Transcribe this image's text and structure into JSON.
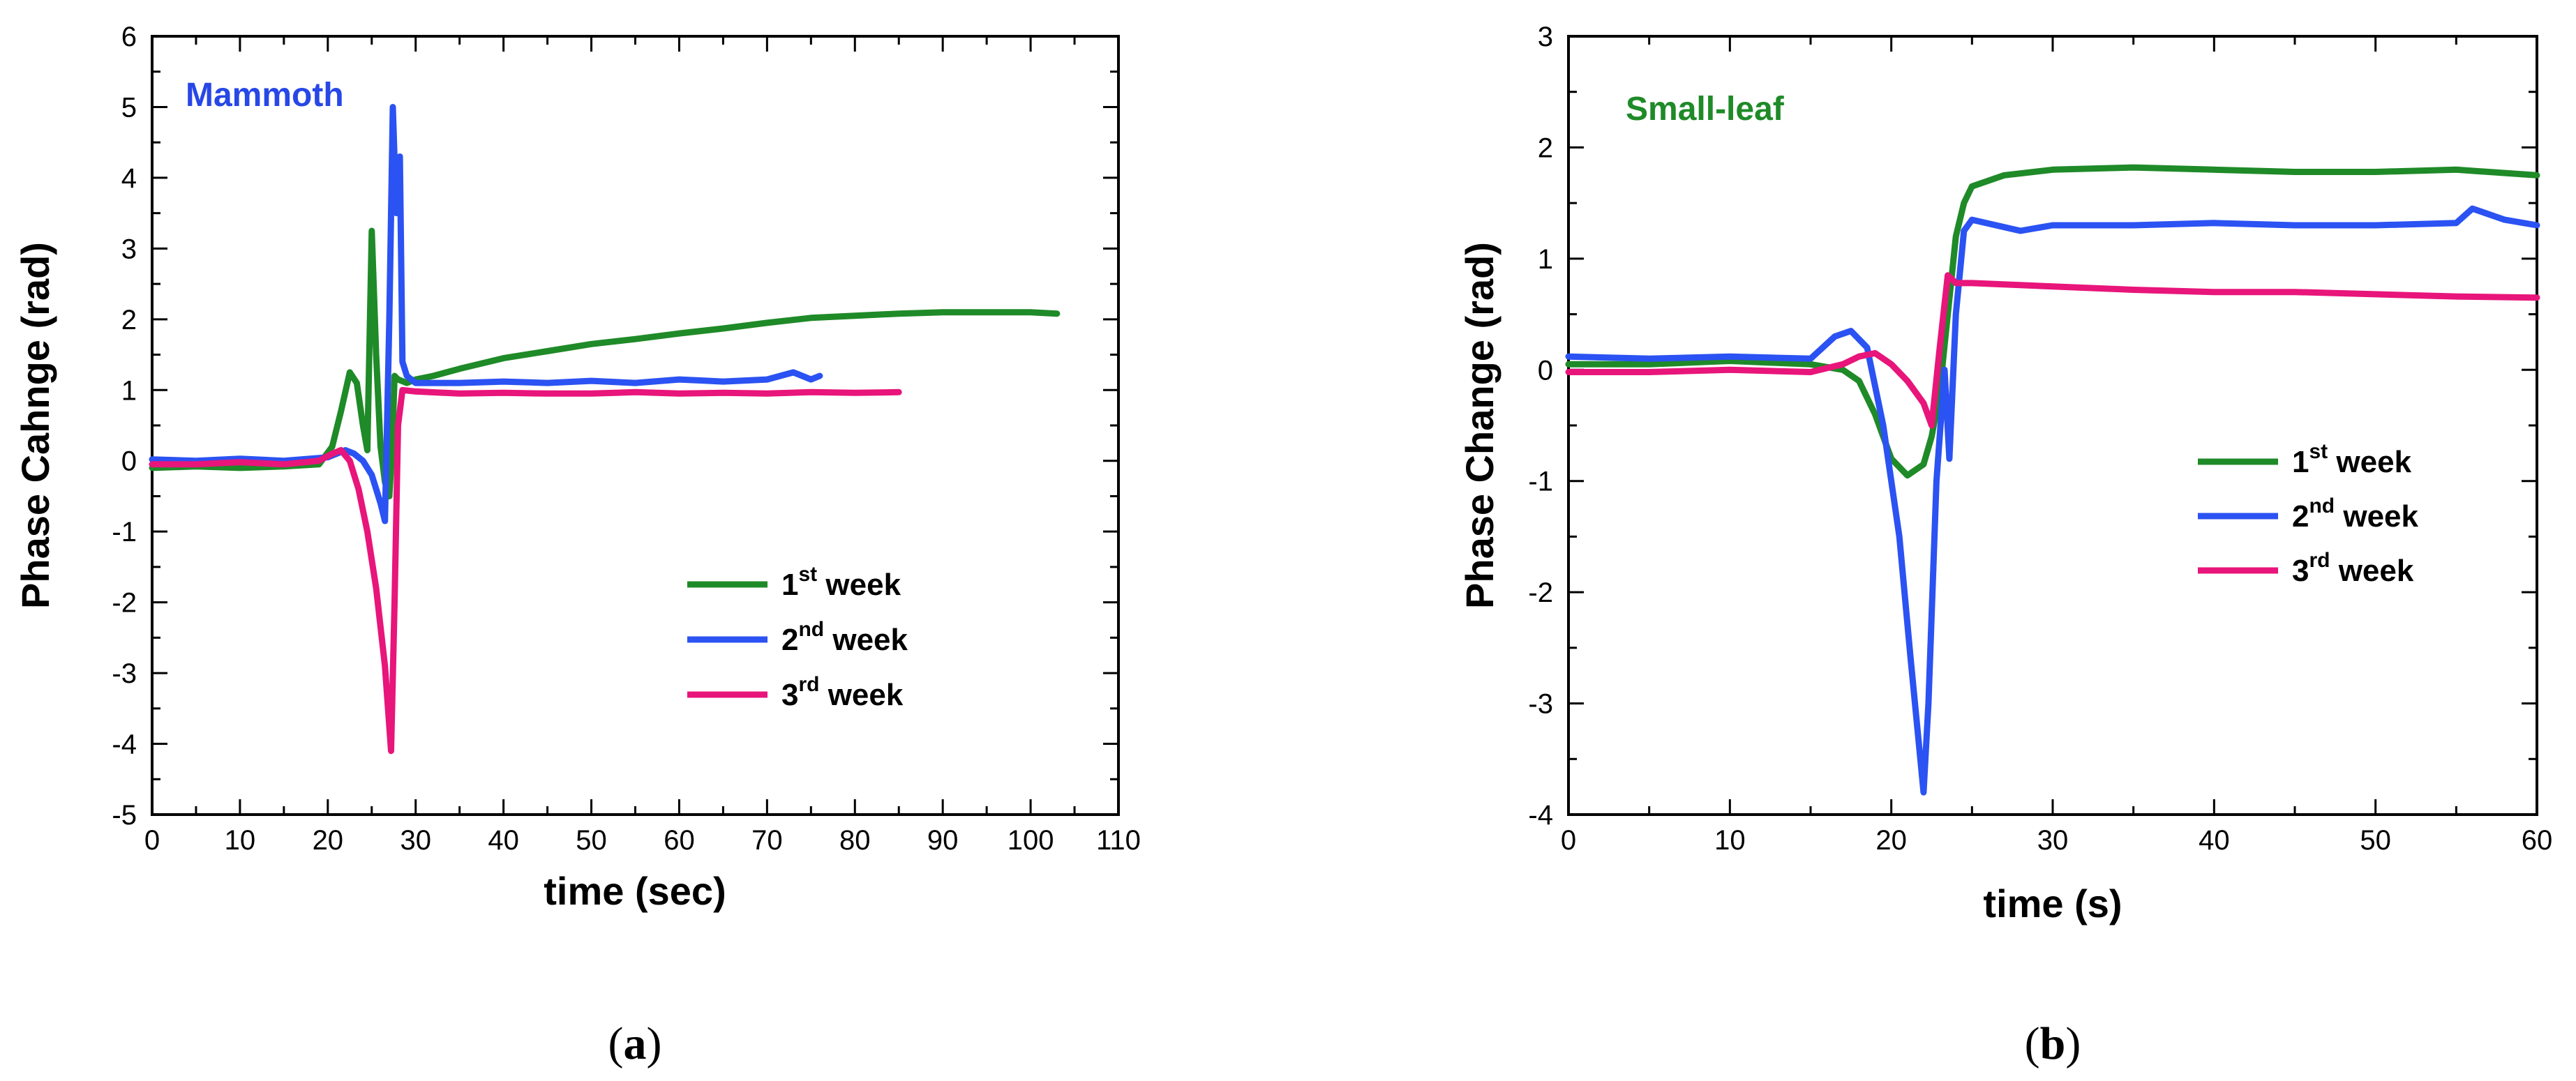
{
  "chart_data": [
    {
      "type": "line",
      "panel_label": "a",
      "title": "Mammoth",
      "title_color": "#2747e6",
      "xlabel": "time (sec)",
      "ylabel": "Phase Cahnge (rad)",
      "xlim": [
        0,
        110
      ],
      "ylim": [
        -5,
        6
      ],
      "xticks": [
        0,
        10,
        20,
        30,
        40,
        50,
        60,
        70,
        80,
        90,
        100,
        110
      ],
      "yticks": [
        -5,
        -4,
        -3,
        -2,
        -1,
        0,
        1,
        2,
        3,
        4,
        5,
        6
      ],
      "grid": false,
      "legend_position": "lower-right",
      "series": [
        {
          "name": "1st week",
          "base": "1",
          "sup": "st",
          "suffix": "week",
          "color": "#1f8a28",
          "x": [
            0,
            5,
            10,
            15,
            19,
            20.5,
            21.5,
            22.5,
            23.3,
            24,
            24.5,
            25,
            25.5,
            26,
            26.5,
            27,
            27.3,
            27.6,
            28,
            29,
            30,
            32,
            35,
            40,
            45,
            50,
            55,
            60,
            65,
            70,
            75,
            80,
            85,
            90,
            95,
            100,
            103
          ],
          "y": [
            -0.1,
            -0.08,
            -0.1,
            -0.08,
            -0.05,
            0.2,
            0.7,
            1.25,
            1.1,
            0.5,
            0.15,
            3.25,
            1.5,
            0.2,
            -0.3,
            -0.5,
            0.1,
            1.2,
            1.15,
            1.1,
            1.15,
            1.2,
            1.3,
            1.45,
            1.55,
            1.65,
            1.72,
            1.8,
            1.87,
            1.95,
            2.02,
            2.05,
            2.08,
            2.1,
            2.1,
            2.1,
            2.08
          ]
        },
        {
          "name": "2nd week",
          "base": "2",
          "sup": "nd",
          "suffix": "week",
          "color": "#2b52f2",
          "x": [
            0,
            5,
            10,
            15,
            20,
            22,
            23,
            24,
            25,
            26,
            26.5,
            27,
            27.4,
            27.8,
            28.2,
            28.5,
            29,
            30,
            35,
            40,
            45,
            50,
            55,
            60,
            65,
            70,
            73,
            75,
            76
          ],
          "y": [
            0.02,
            0.0,
            0.03,
            0.0,
            0.05,
            0.15,
            0.1,
            0.0,
            -0.2,
            -0.6,
            -0.85,
            2.0,
            5.0,
            3.5,
            4.3,
            1.4,
            1.2,
            1.1,
            1.1,
            1.12,
            1.1,
            1.13,
            1.1,
            1.15,
            1.12,
            1.15,
            1.25,
            1.15,
            1.2
          ]
        },
        {
          "name": "3rd week",
          "base": "3",
          "sup": "rd",
          "suffix": "week",
          "color": "#e8157a",
          "x": [
            0,
            5,
            10,
            15,
            19,
            20.5,
            21.5,
            22.5,
            23.5,
            24.5,
            25.5,
            26.5,
            27.2,
            27.6,
            28,
            28.5,
            30,
            35,
            40,
            45,
            50,
            55,
            60,
            65,
            70,
            75,
            80,
            85
          ],
          "y": [
            -0.05,
            -0.05,
            -0.02,
            -0.05,
            0.0,
            0.1,
            0.15,
            0.0,
            -0.4,
            -1.0,
            -1.8,
            -2.9,
            -4.1,
            -2.0,
            0.5,
            1.0,
            0.98,
            0.95,
            0.96,
            0.95,
            0.95,
            0.97,
            0.95,
            0.96,
            0.95,
            0.97,
            0.96,
            0.97
          ]
        }
      ]
    },
    {
      "type": "line",
      "panel_label": "b",
      "title": "Small-leaf",
      "title_color": "#1f8a28",
      "xlabel": "time (s)",
      "ylabel": "Phase Change (rad)",
      "xlim": [
        0,
        60
      ],
      "ylim": [
        -4,
        3
      ],
      "xticks": [
        0,
        10,
        20,
        30,
        40,
        50,
        60
      ],
      "yticks": [
        -4,
        -3,
        -2,
        -1,
        0,
        1,
        2,
        3
      ],
      "grid": false,
      "legend_position": "center-right",
      "series": [
        {
          "name": "1st week",
          "base": "1",
          "sup": "st",
          "suffix": "week",
          "color": "#1f8a28",
          "x": [
            0,
            5,
            10,
            15,
            17,
            18,
            19,
            20,
            21,
            22,
            22.5,
            23,
            23.5,
            24,
            24.5,
            25,
            27,
            30,
            35,
            40,
            45,
            50,
            55,
            60
          ],
          "y": [
            0.05,
            0.05,
            0.08,
            0.05,
            0.0,
            -0.1,
            -0.4,
            -0.8,
            -0.95,
            -0.85,
            -0.6,
            -0.2,
            0.5,
            1.2,
            1.5,
            1.65,
            1.75,
            1.8,
            1.82,
            1.8,
            1.78,
            1.78,
            1.8,
            1.75
          ]
        },
        {
          "name": "2nd week",
          "base": "2",
          "sup": "nd",
          "suffix": "week",
          "color": "#2b52f2",
          "x": [
            0,
            5,
            10,
            15,
            16.5,
            17.5,
            18.5,
            19.5,
            20.5,
            21.2,
            21.8,
            22,
            22.3,
            22.8,
            23.3,
            23.6,
            24,
            24.5,
            25,
            28,
            30,
            35,
            40,
            45,
            50,
            55,
            56,
            58,
            60
          ],
          "y": [
            0.12,
            0.1,
            0.12,
            0.1,
            0.3,
            0.35,
            0.2,
            -0.5,
            -1.5,
            -2.6,
            -3.5,
            -3.8,
            -3.0,
            -1.0,
            0.0,
            -0.8,
            0.5,
            1.25,
            1.35,
            1.25,
            1.3,
            1.3,
            1.32,
            1.3,
            1.3,
            1.32,
            1.45,
            1.35,
            1.3
          ]
        },
        {
          "name": "3rd week",
          "base": "3",
          "sup": "rd",
          "suffix": "week",
          "color": "#e8157a",
          "x": [
            0,
            5,
            10,
            15,
            17,
            18,
            19,
            20,
            21,
            22,
            22.5,
            23,
            23.5,
            24,
            25,
            30,
            35,
            40,
            45,
            50,
            55,
            60
          ],
          "y": [
            -0.02,
            -0.02,
            0.0,
            -0.02,
            0.05,
            0.12,
            0.15,
            0.05,
            -0.1,
            -0.3,
            -0.5,
            0.2,
            0.85,
            0.78,
            0.78,
            0.75,
            0.72,
            0.7,
            0.7,
            0.68,
            0.66,
            0.65
          ]
        }
      ]
    }
  ]
}
